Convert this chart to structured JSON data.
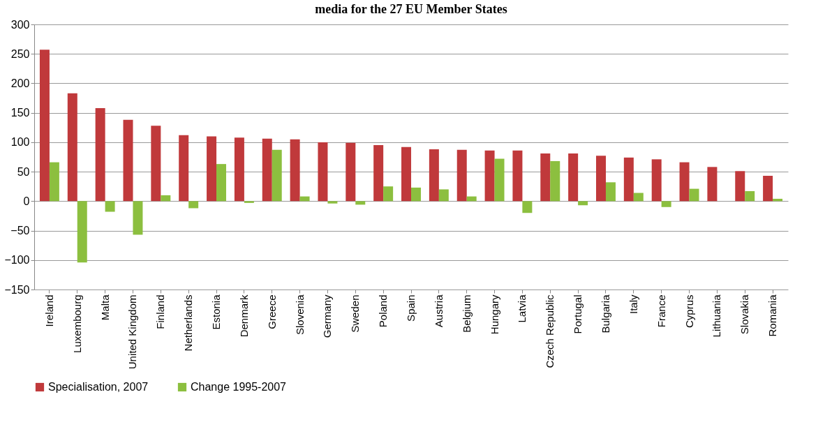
{
  "chart_data": {
    "type": "bar",
    "title": "media for the 27 EU Member States",
    "categories": [
      "Ireland",
      "Luxembourg",
      "Malta",
      "United Kingdom",
      "Finland",
      "Netherlands",
      "Estonia",
      "Denmark",
      "Greece",
      "Slovenia",
      "Germany",
      "Sweden",
      "Poland",
      "Spain",
      "Austria",
      "Belgium",
      "Hungary",
      "Latvia",
      "Czech Republic",
      "Portugal",
      "Bulgaria",
      "Italy",
      "France",
      "Cyprus",
      "Lithuania",
      "Slovakia",
      "Romania"
    ],
    "series": [
      {
        "name": "Specialisation, 2007",
        "color": "#c0393b",
        "values": [
          257,
          183,
          158,
          138,
          128,
          112,
          110,
          108,
          106,
          105,
          100,
          99,
          95,
          92,
          88,
          87,
          86,
          86,
          81,
          81,
          77,
          74,
          71,
          66,
          58,
          51,
          43
        ]
      },
      {
        "name": "Change 1995-2007",
        "color": "#8cbf3f",
        "values": [
          66,
          -104,
          -18,
          -57,
          10,
          -12,
          63,
          -3,
          87,
          8,
          -4,
          -6,
          25,
          23,
          20,
          8,
          72,
          -20,
          68,
          -7,
          32,
          14,
          -10,
          21,
          0,
          17,
          4
        ]
      }
    ],
    "ylim": [
      -150,
      300
    ],
    "yticks": [
      -150,
      -100,
      -50,
      0,
      50,
      100,
      150,
      200,
      250,
      300
    ],
    "grid": "y",
    "legend": "bottom"
  }
}
